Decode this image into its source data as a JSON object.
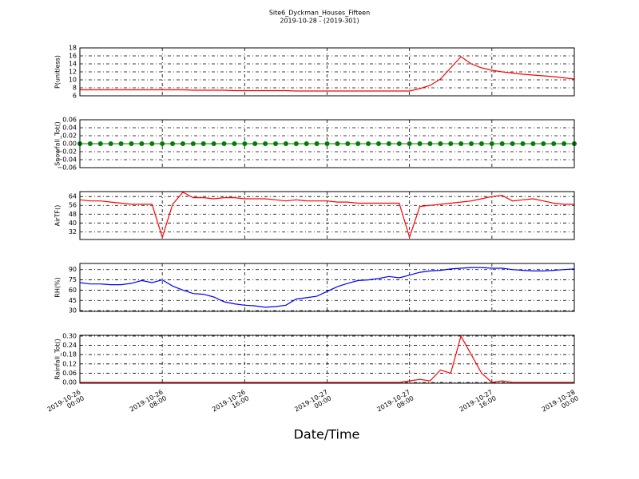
{
  "chart_data": [
    {
      "type": "line",
      "title": "Site6_Dyckman_Houses_Fifteen",
      "subtitle": "2019-10-28 - (2019-301)",
      "y_label": "P(unitless)",
      "x": [
        "2019-10-26 00:00",
        "2019-10-26 01:00",
        "2019-10-26 02:00",
        "2019-10-26 03:00",
        "2019-10-26 04:00",
        "2019-10-26 05:00",
        "2019-10-26 06:00",
        "2019-10-26 07:00",
        "2019-10-26 08:00",
        "2019-10-26 09:00",
        "2019-10-26 10:00",
        "2019-10-26 11:00",
        "2019-10-26 12:00",
        "2019-10-26 13:00",
        "2019-10-26 14:00",
        "2019-10-26 15:00",
        "2019-10-26 16:00",
        "2019-10-26 17:00",
        "2019-10-26 18:00",
        "2019-10-26 19:00",
        "2019-10-26 20:00",
        "2019-10-26 21:00",
        "2019-10-26 22:00",
        "2019-10-26 23:00",
        "2019-10-27 00:00",
        "2019-10-27 01:00",
        "2019-10-27 02:00",
        "2019-10-27 03:00",
        "2019-10-27 04:00",
        "2019-10-27 05:00",
        "2019-10-27 06:00",
        "2019-10-27 07:00",
        "2019-10-27 08:00",
        "2019-10-27 09:00",
        "2019-10-27 10:00",
        "2019-10-27 11:00",
        "2019-10-27 12:00",
        "2019-10-27 13:00",
        "2019-10-27 14:00",
        "2019-10-27 15:00",
        "2019-10-27 16:00",
        "2019-10-27 17:00",
        "2019-10-27 18:00",
        "2019-10-27 19:00",
        "2019-10-27 20:00",
        "2019-10-27 21:00",
        "2019-10-27 22:00",
        "2019-10-27 23:00",
        "2019-10-28 00:00"
      ],
      "series": [
        {
          "color": "#ff0000",
          "values": [
            7.5,
            7.5,
            7.5,
            7.5,
            7.5,
            7.5,
            7.5,
            7.5,
            7.5,
            7.5,
            7.5,
            7.4,
            7.4,
            7.4,
            7.4,
            7.3,
            7.3,
            7.3,
            7.3,
            7.3,
            7.3,
            7.2,
            7.2,
            7.2,
            7.2,
            7.2,
            7.2,
            7.2,
            7.2,
            7.2,
            7.2,
            7.2,
            7.2,
            7.8,
            8.6,
            10.2,
            13.0,
            15.8,
            14.0,
            13.0,
            12.4,
            12.0,
            11.7,
            11.4,
            11.2,
            11.0,
            10.8,
            10.5,
            10.2
          ]
        }
      ],
      "xlim": [
        "2019-10-26 00:00",
        "2019-10-28 00:00"
      ],
      "xticks": [
        "2019-10-26 00:00",
        "2019-10-26 08:00",
        "2019-10-26 16:00",
        "2019-10-27 00:00",
        "2019-10-27 08:00",
        "2019-10-27 16:00",
        "2019-10-28 00:00"
      ],
      "ylim": [
        6,
        18
      ],
      "yticks": [
        6,
        8,
        10,
        12,
        14,
        16,
        18
      ],
      "grid": true
    },
    {
      "type": "line",
      "y_label": "Snowfall_Tot()",
      "marker": true,
      "x": [
        "2019-10-26 00:00",
        "2019-10-26 01:00",
        "2019-10-26 02:00",
        "2019-10-26 03:00",
        "2019-10-26 04:00",
        "2019-10-26 05:00",
        "2019-10-26 06:00",
        "2019-10-26 07:00",
        "2019-10-26 08:00",
        "2019-10-26 09:00",
        "2019-10-26 10:00",
        "2019-10-26 11:00",
        "2019-10-26 12:00",
        "2019-10-26 13:00",
        "2019-10-26 14:00",
        "2019-10-26 15:00",
        "2019-10-26 16:00",
        "2019-10-26 17:00",
        "2019-10-26 18:00",
        "2019-10-26 19:00",
        "2019-10-26 20:00",
        "2019-10-26 21:00",
        "2019-10-26 22:00",
        "2019-10-26 23:00",
        "2019-10-27 00:00",
        "2019-10-27 01:00",
        "2019-10-27 02:00",
        "2019-10-27 03:00",
        "2019-10-27 04:00",
        "2019-10-27 05:00",
        "2019-10-27 06:00",
        "2019-10-27 07:00",
        "2019-10-27 08:00",
        "2019-10-27 09:00",
        "2019-10-27 10:00",
        "2019-10-27 11:00",
        "2019-10-27 12:00",
        "2019-10-27 13:00",
        "2019-10-27 14:00",
        "2019-10-27 15:00",
        "2019-10-27 16:00",
        "2019-10-27 17:00",
        "2019-10-27 18:00",
        "2019-10-27 19:00",
        "2019-10-27 20:00",
        "2019-10-27 21:00",
        "2019-10-27 22:00",
        "2019-10-27 23:00",
        "2019-10-28 00:00"
      ],
      "series": [
        {
          "color": "#008000",
          "values": [
            0,
            0,
            0,
            0,
            0,
            0,
            0,
            0,
            0,
            0,
            0,
            0,
            0,
            0,
            0,
            0,
            0,
            0,
            0,
            0,
            0,
            0,
            0,
            0,
            0,
            0,
            0,
            0,
            0,
            0,
            0,
            0,
            0,
            0,
            0,
            0,
            0,
            0,
            0,
            0,
            0,
            0,
            0,
            0,
            0,
            0,
            0,
            0,
            0
          ]
        }
      ],
      "xlim": [
        "2019-10-26 00:00",
        "2019-10-28 00:00"
      ],
      "xticks": [
        "2019-10-26 00:00",
        "2019-10-26 08:00",
        "2019-10-26 16:00",
        "2019-10-27 00:00",
        "2019-10-27 08:00",
        "2019-10-27 16:00",
        "2019-10-28 00:00"
      ],
      "ylim": [
        -0.06,
        0.06
      ],
      "yticks": [
        {
          "value": -0.06,
          "label": "−0.06"
        },
        {
          "value": -0.04,
          "label": "−0.04"
        },
        {
          "value": -0.02,
          "label": "−0.02"
        },
        {
          "value": 0,
          "label": "0.00"
        },
        0.02,
        0.04,
        0.06
      ],
      "grid": true
    },
    {
      "type": "line",
      "y_label": "AirTF()",
      "x": [
        "2019-10-26 00:00",
        "2019-10-26 01:00",
        "2019-10-26 02:00",
        "2019-10-26 03:00",
        "2019-10-26 04:00",
        "2019-10-26 05:00",
        "2019-10-26 06:00",
        "2019-10-26 07:00",
        "2019-10-26 08:00",
        "2019-10-26 09:00",
        "2019-10-26 10:00",
        "2019-10-26 11:00",
        "2019-10-26 12:00",
        "2019-10-26 13:00",
        "2019-10-26 14:00",
        "2019-10-26 15:00",
        "2019-10-26 16:00",
        "2019-10-26 17:00",
        "2019-10-26 18:00",
        "2019-10-26 19:00",
        "2019-10-26 20:00",
        "2019-10-26 21:00",
        "2019-10-26 22:00",
        "2019-10-26 23:00",
        "2019-10-27 00:00",
        "2019-10-27 01:00",
        "2019-10-27 02:00",
        "2019-10-27 03:00",
        "2019-10-27 04:00",
        "2019-10-27 05:00",
        "2019-10-27 06:00",
        "2019-10-27 07:00",
        "2019-10-27 08:00",
        "2019-10-27 09:00",
        "2019-10-27 10:00",
        "2019-10-27 11:00",
        "2019-10-27 12:00",
        "2019-10-27 13:00",
        "2019-10-27 14:00",
        "2019-10-27 15:00",
        "2019-10-27 16:00",
        "2019-10-27 17:00",
        "2019-10-27 18:00",
        "2019-10-27 19:00",
        "2019-10-27 20:00",
        "2019-10-27 21:00",
        "2019-10-27 22:00",
        "2019-10-27 23:00",
        "2019-10-28 00:00"
      ],
      "series": [
        {
          "color": "#ff0000",
          "values": [
            61,
            60,
            60,
            59,
            58,
            57,
            57,
            57,
            27,
            57,
            68,
            63,
            63,
            62,
            63,
            63,
            62,
            62,
            62,
            61,
            60,
            61,
            60,
            60,
            60,
            59,
            59,
            58,
            58,
            58,
            58,
            58,
            27,
            55,
            56,
            57,
            58,
            59,
            60,
            62,
            64,
            65,
            60,
            61,
            62,
            60,
            58,
            57,
            57
          ]
        }
      ],
      "xlim": [
        "2019-10-26 00:00",
        "2019-10-28 00:00"
      ],
      "xticks": [
        "2019-10-26 00:00",
        "2019-10-26 08:00",
        "2019-10-26 16:00",
        "2019-10-27 00:00",
        "2019-10-27 08:00",
        "2019-10-27 16:00",
        "2019-10-28 00:00"
      ],
      "ylim": [
        25,
        68.5
      ],
      "yticks": [
        32,
        40,
        48,
        56,
        64
      ],
      "grid": true
    },
    {
      "type": "line",
      "y_label": "RH(%)",
      "x": [
        "2019-10-26 00:00",
        "2019-10-26 01:00",
        "2019-10-26 02:00",
        "2019-10-26 03:00",
        "2019-10-26 04:00",
        "2019-10-26 05:00",
        "2019-10-26 06:00",
        "2019-10-26 07:00",
        "2019-10-26 08:00",
        "2019-10-26 09:00",
        "2019-10-26 10:00",
        "2019-10-26 11:00",
        "2019-10-26 12:00",
        "2019-10-26 13:00",
        "2019-10-26 14:00",
        "2019-10-26 15:00",
        "2019-10-26 16:00",
        "2019-10-26 17:00",
        "2019-10-26 18:00",
        "2019-10-26 19:00",
        "2019-10-26 20:00",
        "2019-10-26 21:00",
        "2019-10-26 22:00",
        "2019-10-26 23:00",
        "2019-10-27 00:00",
        "2019-10-27 01:00",
        "2019-10-27 02:00",
        "2019-10-27 03:00",
        "2019-10-27 04:00",
        "2019-10-27 05:00",
        "2019-10-27 06:00",
        "2019-10-27 07:00",
        "2019-10-27 08:00",
        "2019-10-27 09:00",
        "2019-10-27 10:00",
        "2019-10-27 11:00",
        "2019-10-27 12:00",
        "2019-10-27 13:00",
        "2019-10-27 14:00",
        "2019-10-27 15:00",
        "2019-10-27 16:00",
        "2019-10-27 17:00",
        "2019-10-27 18:00",
        "2019-10-27 19:00",
        "2019-10-27 20:00",
        "2019-10-27 21:00",
        "2019-10-27 22:00",
        "2019-10-27 23:00",
        "2019-10-28 00:00"
      ],
      "series": [
        {
          "color": "#0000ff",
          "values": [
            71,
            69,
            69,
            68,
            68,
            70,
            74,
            71,
            75,
            66,
            60,
            55,
            54,
            50,
            43,
            40,
            38,
            37,
            35,
            36,
            38,
            47,
            49,
            51,
            58,
            65,
            70,
            74,
            75,
            77,
            80,
            78,
            82,
            86,
            88,
            89,
            91,
            92,
            93,
            93,
            92,
            92,
            90,
            89,
            88,
            88,
            89,
            90,
            91
          ]
        }
      ],
      "xlim": [
        "2019-10-26 00:00",
        "2019-10-28 00:00"
      ],
      "xticks": [
        "2019-10-26 00:00",
        "2019-10-26 08:00",
        "2019-10-26 16:00",
        "2019-10-27 00:00",
        "2019-10-27 08:00",
        "2019-10-27 16:00",
        "2019-10-28 00:00"
      ],
      "ylim": [
        29,
        99
      ],
      "yticks": [
        30,
        45,
        60,
        75,
        90
      ],
      "grid": true
    },
    {
      "type": "line",
      "y_label": "Rainfall_Tot()",
      "x_label": "Date/Time",
      "x": [
        "2019-10-26 00:00",
        "2019-10-26 01:00",
        "2019-10-26 02:00",
        "2019-10-26 03:00",
        "2019-10-26 04:00",
        "2019-10-26 05:00",
        "2019-10-26 06:00",
        "2019-10-26 07:00",
        "2019-10-26 08:00",
        "2019-10-26 09:00",
        "2019-10-26 10:00",
        "2019-10-26 11:00",
        "2019-10-26 12:00",
        "2019-10-26 13:00",
        "2019-10-26 14:00",
        "2019-10-26 15:00",
        "2019-10-26 16:00",
        "2019-10-26 17:00",
        "2019-10-26 18:00",
        "2019-10-26 19:00",
        "2019-10-26 20:00",
        "2019-10-26 21:00",
        "2019-10-26 22:00",
        "2019-10-26 23:00",
        "2019-10-27 00:00",
        "2019-10-27 01:00",
        "2019-10-27 02:00",
        "2019-10-27 03:00",
        "2019-10-27 04:00",
        "2019-10-27 05:00",
        "2019-10-27 06:00",
        "2019-10-27 07:00",
        "2019-10-27 08:00",
        "2019-10-27 09:00",
        "2019-10-27 10:00",
        "2019-10-27 11:00",
        "2019-10-27 12:00",
        "2019-10-27 13:00",
        "2019-10-27 14:00",
        "2019-10-27 15:00",
        "2019-10-27 16:00",
        "2019-10-27 17:00",
        "2019-10-27 18:00",
        "2019-10-27 19:00",
        "2019-10-27 20:00",
        "2019-10-27 21:00",
        "2019-10-27 22:00",
        "2019-10-27 23:00",
        "2019-10-28 00:00"
      ],
      "series": [
        {
          "color": "#ff0000",
          "values": [
            0,
            0,
            0,
            0,
            0,
            0,
            0,
            0,
            0,
            0,
            0,
            0,
            0,
            0,
            0,
            0,
            0,
            0,
            0,
            0,
            0,
            0,
            0,
            0,
            0,
            0,
            0,
            0,
            0,
            0,
            0,
            0,
            0.01,
            0.02,
            0.01,
            0.08,
            0.06,
            0.3,
            0.18,
            0.06,
            0,
            0.01,
            0,
            0,
            0,
            0,
            0,
            0,
            0
          ]
        }
      ],
      "xlim": [
        "2019-10-26 00:00",
        "2019-10-28 00:00"
      ],
      "xticks": [
        "2019-10-26 00:00",
        "2019-10-26 08:00",
        "2019-10-26 16:00",
        "2019-10-27 00:00",
        "2019-10-27 08:00",
        "2019-10-27 16:00",
        "2019-10-28 00:00"
      ],
      "ylim": [
        -0.005,
        0.305
      ],
      "yticks": [
        {
          "value": 0,
          "label": "0.00"
        },
        0.06,
        0.12,
        0.18,
        0.24,
        {
          "value": 0.3,
          "label": "0.30"
        }
      ],
      "grid": true
    }
  ]
}
